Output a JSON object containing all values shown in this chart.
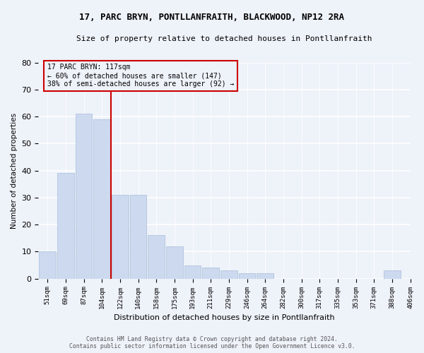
{
  "title1": "17, PARC BRYN, PONTLLANFRAITH, BLACKWOOD, NP12 2RA",
  "title2": "Size of property relative to detached houses in Pontllanfraith",
  "xlabel": "Distribution of detached houses by size in Pontllanfraith",
  "ylabel": "Number of detached properties",
  "bar_values": [
    10,
    39,
    61,
    59,
    31,
    31,
    16,
    12,
    5,
    4,
    3,
    2,
    2,
    0,
    0,
    0,
    0,
    0,
    0,
    3
  ],
  "bin_labels": [
    "51sqm",
    "69sqm",
    "87sqm",
    "104sqm",
    "122sqm",
    "140sqm",
    "158sqm",
    "175sqm",
    "193sqm",
    "211sqm",
    "229sqm",
    "246sqm",
    "264sqm",
    "282sqm",
    "300sqm",
    "317sqm",
    "335sqm",
    "353sqm",
    "371sqm",
    "388sqm",
    "406sqm"
  ],
  "bar_color": "#ccd9ee",
  "bar_edge_color": "#b0c4de",
  "property_label": "17 PARC BRYN: 117sqm",
  "annotation_line1": "← 60% of detached houses are smaller (147)",
  "annotation_line2": "38% of semi-detached houses are larger (92) →",
  "vline_color": "#cc0000",
  "annotation_box_color": "#cc0000",
  "footer1": "Contains HM Land Registry data © Crown copyright and database right 2024.",
  "footer2": "Contains public sector information licensed under the Open Government Licence v3.0.",
  "ylim": [
    0,
    80
  ],
  "yticks": [
    0,
    10,
    20,
    30,
    40,
    50,
    60,
    70,
    80
  ],
  "background_color": "#eef2f9",
  "grid_color": "#ffffff"
}
